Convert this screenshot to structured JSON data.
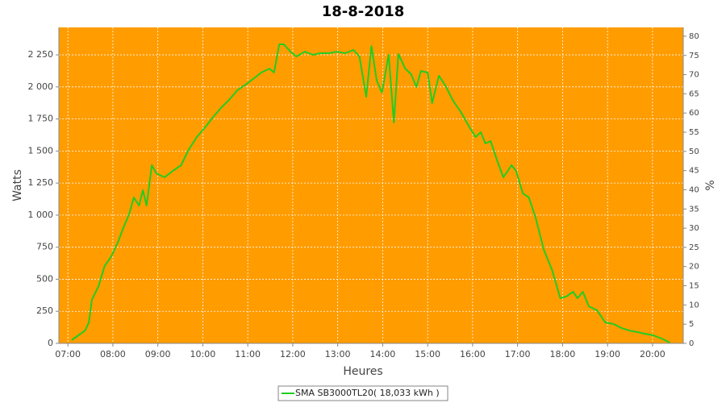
{
  "chart_data": {
    "type": "line",
    "title": "18-8-2018",
    "x_label": "Heures",
    "y_label": "Watts",
    "y2_label": "%",
    "x": [
      "07:05",
      "07:14",
      "07:23",
      "07:28",
      "07:32",
      "07:41",
      "07:49",
      "07:58",
      "08:07",
      "08:13",
      "08:22",
      "08:28",
      "08:35",
      "08:40",
      "08:45",
      "08:52",
      "08:58",
      "09:09",
      "09:20",
      "09:31",
      "09:41",
      "09:52",
      "10:03",
      "10:14",
      "10:25",
      "10:35",
      "10:46",
      "10:57",
      "11:07",
      "11:18",
      "11:29",
      "11:35",
      "11:42",
      "11:48",
      "11:57",
      "12:05",
      "12:16",
      "12:27",
      "12:37",
      "12:48",
      "12:59",
      "13:10",
      "13:21",
      "13:29",
      "13:38",
      "13:45",
      "13:52",
      "13:59",
      "14:08",
      "14:15",
      "14:21",
      "14:30",
      "14:38",
      "14:45",
      "14:51",
      "15:00",
      "15:06",
      "15:15",
      "15:23",
      "15:34",
      "15:45",
      "15:56",
      "16:04",
      "16:11",
      "16:17",
      "16:24",
      "16:33",
      "16:41",
      "16:52",
      "16:58",
      "17:07",
      "17:15",
      "17:24",
      "17:35",
      "17:46",
      "17:57",
      "18:05",
      "18:14",
      "18:20",
      "18:27",
      "18:35",
      "18:46",
      "18:57",
      "19:08",
      "19:19",
      "19:29",
      "19:40",
      "19:50",
      "20:01",
      "20:12",
      "20:23"
    ],
    "series": [
      {
        "name": "SMA SB3000TL20( 18,033 kWh )",
        "color": "#22cc22",
        "values": [
          25,
          63,
          100,
          163,
          340,
          446,
          603,
          679,
          792,
          886,
          1012,
          1138,
          1075,
          1194,
          1075,
          1389,
          1326,
          1295,
          1345,
          1389,
          1508,
          1609,
          1684,
          1766,
          1841,
          1898,
          1973,
          2017,
          2061,
          2112,
          2143,
          2112,
          2332,
          2332,
          2275,
          2237,
          2275,
          2250,
          2263,
          2263,
          2275,
          2263,
          2288,
          2237,
          1923,
          2319,
          2049,
          1955,
          2250,
          1722,
          2256,
          2143,
          2099,
          1999,
          2124,
          2112,
          1873,
          2087,
          2017,
          1892,
          1797,
          1684,
          1609,
          1647,
          1559,
          1578,
          1420,
          1295,
          1389,
          1345,
          1169,
          1138,
          980,
          729,
          572,
          352,
          365,
          402,
          352,
          402,
          289,
          258,
          163,
          151,
          119,
          100,
          88,
          75,
          63,
          38,
          6
        ]
      }
    ],
    "xlim": [
      "06:48",
      "20:41"
    ],
    "xticks": [
      "07:00",
      "08:00",
      "09:00",
      "10:00",
      "11:00",
      "12:00",
      "13:00",
      "14:00",
      "15:00",
      "16:00",
      "17:00",
      "18:00",
      "19:00",
      "20:00"
    ],
    "ylim": [
      0,
      2464
    ],
    "yticks": [
      0,
      250,
      500,
      750,
      {
        "value": 1000,
        "label": "1 000"
      },
      {
        "value": 1250,
        "label": "1 250"
      },
      {
        "value": 1500,
        "label": "1 500"
      },
      {
        "value": 1750,
        "label": "1 750"
      },
      {
        "value": 2000,
        "label": "2 000"
      },
      {
        "value": 2250,
        "label": "2 250"
      }
    ],
    "y2lim": [
      0,
      82.3
    ],
    "y2ticks": [
      0,
      5,
      10,
      15,
      20,
      25,
      30,
      35,
      40,
      45,
      50,
      55,
      60,
      65,
      70,
      75,
      80
    ],
    "grid": true,
    "plot_background": "#ff9c00",
    "legend": "bottom"
  }
}
